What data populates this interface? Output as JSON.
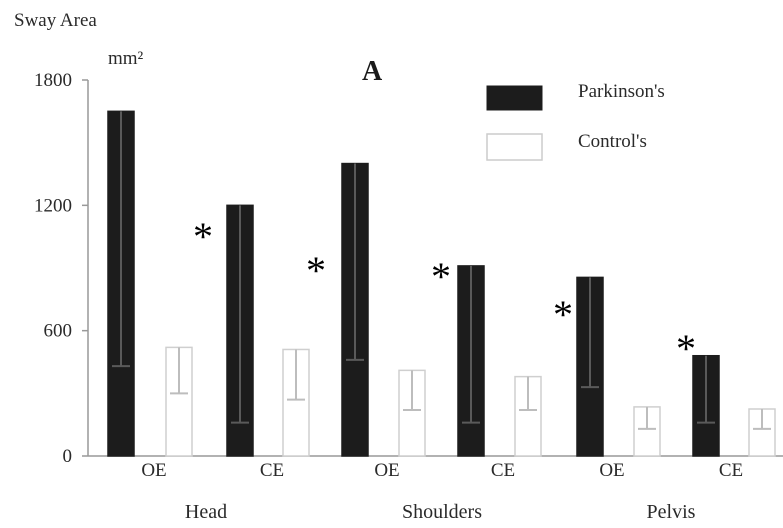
{
  "chart_data": {
    "type": "bar",
    "panel_label": "A",
    "ylabel": "Sway Area",
    "yunit": "mm²",
    "ylim": [
      0,
      1800
    ],
    "yticks": [
      0,
      600,
      1200,
      1800
    ],
    "groups": [
      "Head",
      "Shoulders",
      "Pelvis"
    ],
    "categories": [
      "OE",
      "CE",
      "OE",
      "CE",
      "OE",
      "CE"
    ],
    "series": [
      {
        "name": "Parkinson's",
        "color": "#1c1c1c",
        "values": [
          1650,
          1200,
          1400,
          910,
          855,
          480
        ],
        "error_low": [
          430,
          160,
          460,
          160,
          330,
          160
        ]
      },
      {
        "name": "Control's",
        "color": "#ffffff",
        "values": [
          520,
          510,
          410,
          380,
          235,
          225
        ],
        "error_low": [
          300,
          270,
          220,
          220,
          130,
          130
        ]
      }
    ],
    "significance": [
      "*",
      "*",
      "*",
      "*",
      "*",
      "*"
    ],
    "legend": {
      "position": "top-right"
    },
    "grid": false
  }
}
